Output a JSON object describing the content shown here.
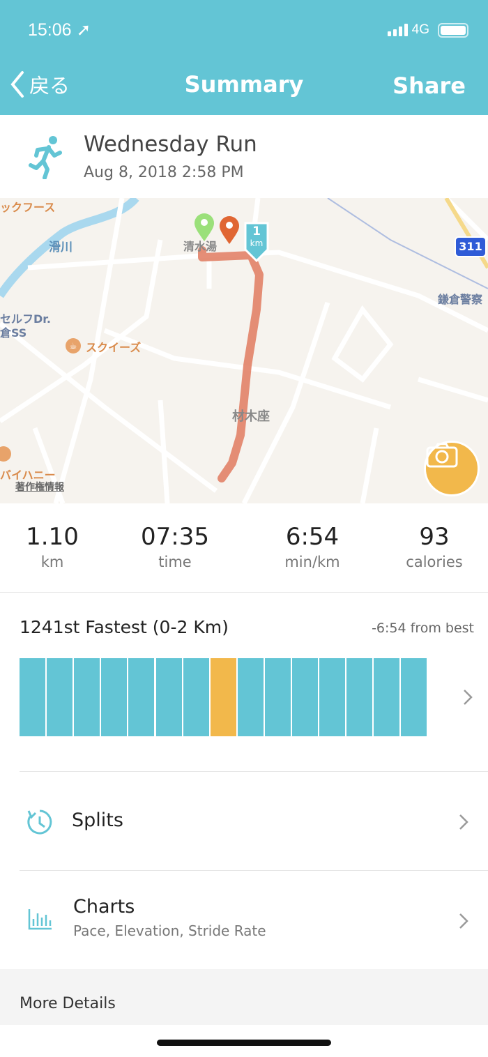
{
  "status_bar": {
    "time": "15:06",
    "network": "4G",
    "battery_level": 1.0
  },
  "nav": {
    "back_label": "戻る",
    "title": "Summary",
    "share_label": "Share"
  },
  "activity": {
    "name": "Wednesday Run",
    "date": "Aug 8, 2018 2:58 PM",
    "icon": "runner-icon"
  },
  "map": {
    "labels": {
      "top_left": "ックフース",
      "river": "滑川",
      "bath": "清水湯",
      "shop": "セルフDr.",
      "shop2": "倉SS",
      "cafe": "スクイーズ",
      "area": "材木座",
      "police": "鎌倉警察",
      "route": "311",
      "restaurant": "バイハニー",
      "copyright": "著作権情報"
    },
    "km_marker": {
      "number": "1",
      "unit": "km"
    },
    "route_color": "#e07a5f",
    "start_color": "#9be07a",
    "end_color": "#e06633"
  },
  "stats": [
    {
      "value": "1.10",
      "unit": "km"
    },
    {
      "value": "07:35",
      "unit": "time"
    },
    {
      "value": "6:54",
      "unit": "min/km"
    },
    {
      "value": "93",
      "unit": "calories"
    }
  ],
  "ranking": {
    "title": "1241st Fastest (0-2 Km)",
    "from_best": "-6:54 from best",
    "bar_count": 15,
    "highlight_index": 7,
    "bar_color": "#63c5d5",
    "highlight_color": "#f2b84b"
  },
  "rows": [
    {
      "label": "Splits",
      "icon": "stopwatch-icon"
    },
    {
      "label": "Charts",
      "sub": "Pace, Elevation, Stride Rate",
      "icon": "bar-chart-icon"
    }
  ],
  "more_details": "More Details",
  "colors": {
    "accent": "#63c5d5",
    "camera": "#f2b84b"
  }
}
